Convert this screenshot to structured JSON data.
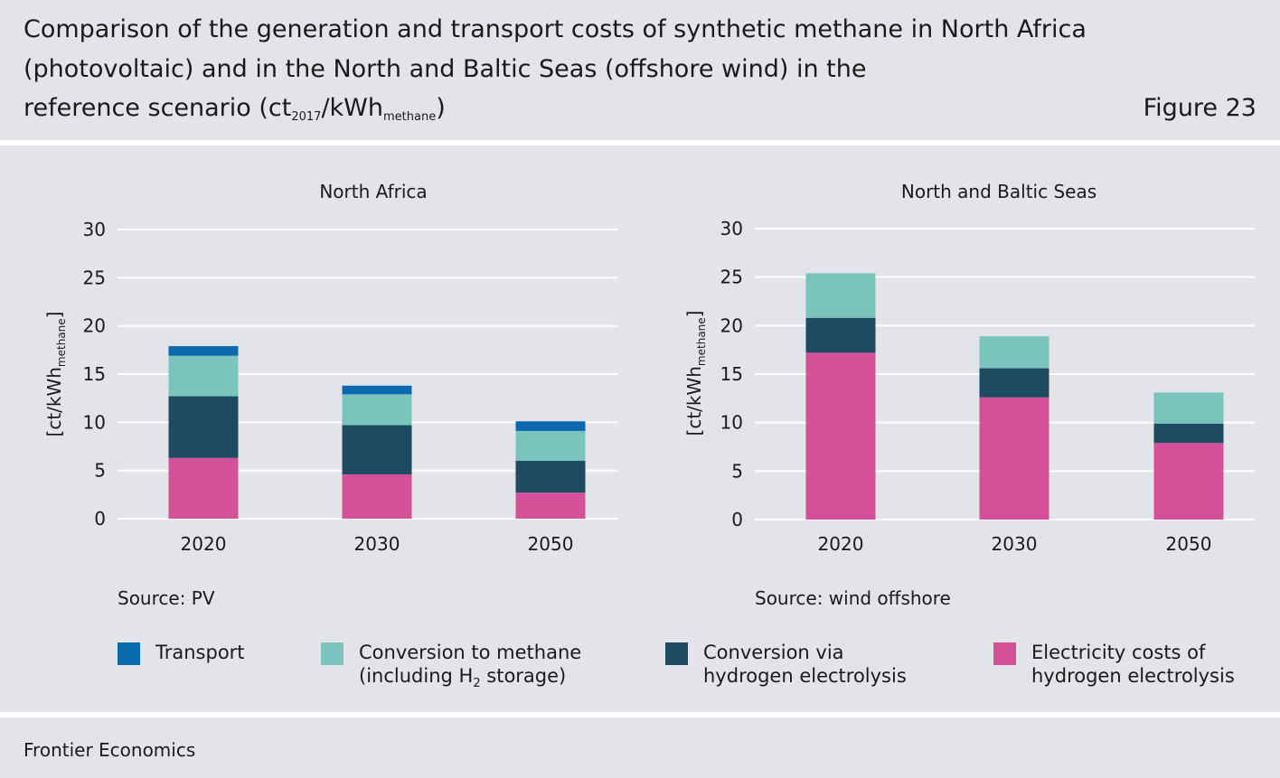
{
  "header": {
    "title_line1": "Comparison of the generation and transport costs of synthetic methane in North Africa",
    "title_line2": "(photovoltaic) and in the North and Baltic Seas (offshore wind) in the",
    "title_line3_prefix": "reference scenario (ct",
    "title_line3_sub1": "2017",
    "title_line3_mid": "/kWh",
    "title_line3_sub2": "methane",
    "title_line3_suffix": ")",
    "figure_label": "Figure 23"
  },
  "colors": {
    "transport": "#0b6aad",
    "conversion_methane": "#7bc3bd",
    "conversion_electrolysis": "#1e4a62",
    "electricity": "#d4519a",
    "grid": "#ffffff",
    "background": "#e3e4e9"
  },
  "legend": [
    {
      "key": "transport",
      "line1": "Transport",
      "line2": "",
      "line2_prefix": "",
      "line2_sub": "",
      "line2_suffix": ""
    },
    {
      "key": "conversion_methane",
      "line1": "Conversion to methane",
      "line2": "",
      "line2_prefix": "(including H",
      "line2_sub": "2",
      "line2_suffix": " storage)"
    },
    {
      "key": "conversion_electrolysis",
      "line1": "Conversion via",
      "line2": "hydrogen electrolysis",
      "line2_prefix": "",
      "line2_sub": "",
      "line2_suffix": ""
    },
    {
      "key": "electricity",
      "line1": "Electricity costs of",
      "line2": "hydrogen electrolysis",
      "line2_prefix": "",
      "line2_sub": "",
      "line2_suffix": ""
    }
  ],
  "footer": {
    "text": "Frontier Economics"
  },
  "chart_data": [
    {
      "type": "bar",
      "stacked": true,
      "title": "North Africa",
      "ylabel": "[ct/kWh",
      "ylabel_sub": "methane",
      "ylabel_suffix": "]",
      "source": "Source: PV",
      "categories": [
        "2020",
        "2030",
        "2050"
      ],
      "ylim": [
        0,
        30
      ],
      "yticks": [
        0,
        5,
        10,
        15,
        20,
        25,
        30
      ],
      "grid": true,
      "series": [
        {
          "key": "electricity",
          "values": [
            6.3,
            4.6,
            2.7
          ]
        },
        {
          "key": "conversion_electrolysis",
          "values": [
            6.4,
            5.1,
            3.3
          ]
        },
        {
          "key": "conversion_methane",
          "values": [
            4.2,
            3.2,
            3.1
          ]
        },
        {
          "key": "transport",
          "values": [
            1.0,
            0.9,
            1.0
          ]
        }
      ]
    },
    {
      "type": "bar",
      "stacked": true,
      "title": "North and Baltic Seas",
      "ylabel": "[ct/kWh",
      "ylabel_sub": "methane",
      "ylabel_suffix": "]",
      "source": "Source: wind offshore",
      "categories": [
        "2020",
        "2030",
        "2050"
      ],
      "ylim": [
        0,
        30
      ],
      "yticks": [
        0,
        5,
        10,
        15,
        20,
        25,
        30
      ],
      "grid": true,
      "series": [
        {
          "key": "electricity",
          "values": [
            17.2,
            12.6,
            7.9
          ]
        },
        {
          "key": "conversion_electrolysis",
          "values": [
            3.6,
            3.0,
            2.0
          ]
        },
        {
          "key": "conversion_methane",
          "values": [
            4.6,
            3.3,
            3.2
          ]
        },
        {
          "key": "transport",
          "values": [
            0,
            0,
            0
          ]
        }
      ]
    }
  ]
}
